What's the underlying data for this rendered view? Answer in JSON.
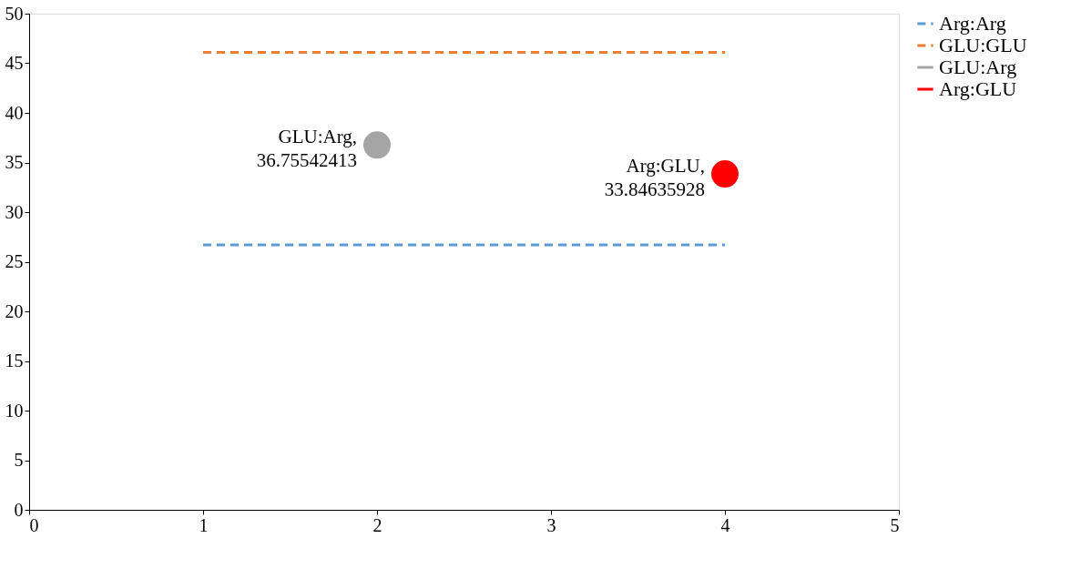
{
  "chart_data": {
    "type": "line",
    "series": [
      {
        "name": "Arg:Arg",
        "color": "#5b9bd5",
        "line_style": "dashed",
        "marker": "none",
        "x": [
          1,
          4
        ],
        "values": [
          26.7,
          26.7
        ]
      },
      {
        "name": "GLU:GLU",
        "color": "#ed7d31",
        "line_style": "dashed",
        "marker": "none",
        "x": [
          1,
          4
        ],
        "values": [
          46.1,
          46.1
        ]
      },
      {
        "name": "GLU:Arg",
        "type": "scatter",
        "color": "#a5a5a5",
        "marker": "circle",
        "x": [
          2
        ],
        "values": [
          36.75542413
        ]
      },
      {
        "name": "Arg:GLU",
        "type": "scatter",
        "color": "#ff0000",
        "marker": "circle",
        "x": [
          4
        ],
        "values": [
          33.84635928
        ]
      }
    ],
    "annotations": [
      {
        "text": "GLU:Arg,\n36.75542413",
        "x": 2,
        "y": 36.75542413
      },
      {
        "text": "Arg:GLU,\n33.84635928",
        "x": 4,
        "y": 33.84635928
      }
    ],
    "xlim": [
      0,
      5
    ],
    "xticks": [
      0,
      1,
      2,
      3,
      4,
      5
    ],
    "ylim": [
      0,
      50
    ],
    "yticks": [
      0,
      5,
      10,
      15,
      20,
      25,
      30,
      35,
      40,
      45,
      50
    ],
    "grid": false,
    "legend": "right"
  }
}
